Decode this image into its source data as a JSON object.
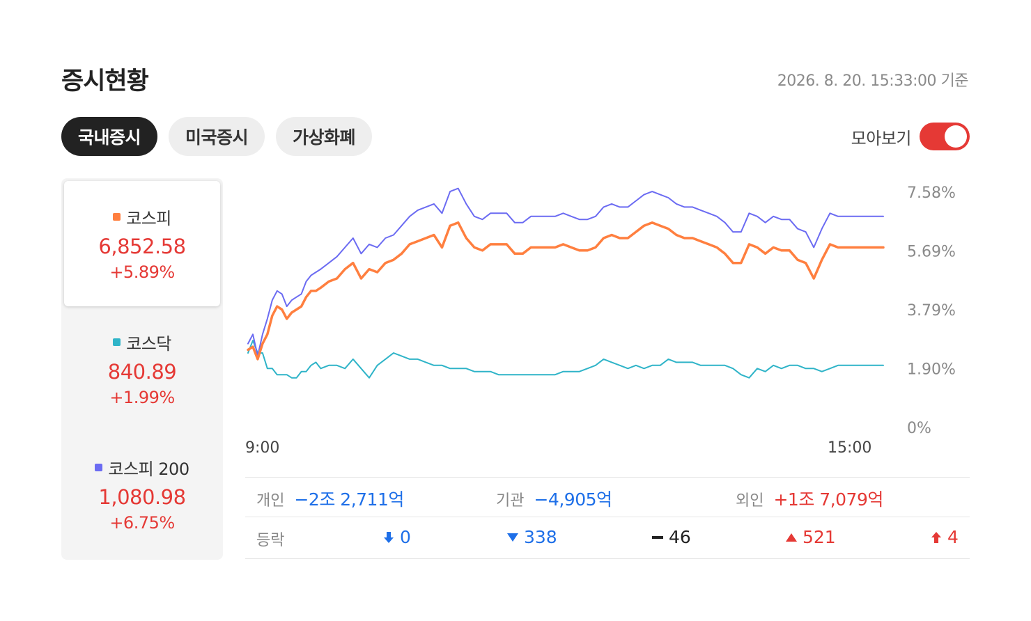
{
  "header": {
    "title": "증시현황",
    "timestamp": "2026. 8. 20. 15:33:00 기준"
  },
  "tabs": [
    {
      "label": "국내증시",
      "active": true
    },
    {
      "label": "미국증시",
      "active": false
    },
    {
      "label": "가상화폐",
      "active": false
    }
  ],
  "toggle": {
    "label": "모아보기",
    "on": true
  },
  "indices": [
    {
      "name": "코스피",
      "value": "6,852.58",
      "change": "+5.89%",
      "color": "#ff7f3f"
    },
    {
      "name": "코스닥",
      "value": "840.89",
      "change": "+1.99%",
      "color": "#2fb4c8"
    },
    {
      "name": "코스피 200",
      "value": "1,080.98",
      "change": "+6.75%",
      "color": "#6b6bf2"
    }
  ],
  "chart_data": {
    "type": "line",
    "x_labels": [
      "9:00",
      "15:00"
    ],
    "y_ticks": [
      "7.58%",
      "5.69%",
      "3.79%",
      "1.90%",
      "0%"
    ],
    "ylim": [
      0,
      7.58
    ],
    "x_range_minutes": [
      0,
      393
    ],
    "series": [
      {
        "name": "코스피",
        "color": "#ff7f3f",
        "x": [
          0,
          3,
          6,
          9,
          12,
          15,
          18,
          21,
          24,
          27,
          30,
          33,
          36,
          39,
          42,
          45,
          50,
          55,
          60,
          65,
          70,
          75,
          80,
          85,
          90,
          95,
          100,
          105,
          110,
          115,
          120,
          125,
          130,
          135,
          140,
          145,
          150,
          155,
          160,
          165,
          170,
          175,
          180,
          185,
          190,
          195,
          200,
          205,
          210,
          215,
          220,
          225,
          230,
          235,
          240,
          245,
          250,
          255,
          260,
          265,
          270,
          275,
          280,
          285,
          290,
          295,
          300,
          305,
          310,
          315,
          320,
          325,
          330,
          335,
          340,
          345,
          350,
          355,
          360,
          365,
          370,
          375,
          380,
          385,
          390,
          393
        ],
        "values": [
          2.5,
          2.6,
          2.2,
          2.7,
          3.0,
          3.6,
          3.9,
          3.8,
          3.5,
          3.7,
          3.8,
          3.9,
          4.2,
          4.4,
          4.4,
          4.5,
          4.7,
          4.8,
          5.1,
          5.3,
          4.8,
          5.1,
          5.0,
          5.3,
          5.4,
          5.6,
          5.9,
          6.0,
          6.1,
          6.2,
          5.8,
          6.5,
          6.6,
          6.1,
          5.8,
          5.7,
          5.9,
          5.9,
          5.9,
          5.6,
          5.6,
          5.8,
          5.8,
          5.8,
          5.8,
          5.9,
          5.8,
          5.7,
          5.7,
          5.8,
          6.1,
          6.2,
          6.1,
          6.1,
          6.3,
          6.5,
          6.6,
          6.5,
          6.4,
          6.2,
          6.1,
          6.1,
          6.0,
          5.9,
          5.8,
          5.6,
          5.3,
          5.3,
          5.9,
          5.8,
          5.6,
          5.8,
          5.7,
          5.7,
          5.4,
          5.3,
          4.8,
          5.4,
          5.9,
          5.8,
          5.8,
          5.8,
          5.8,
          5.8,
          5.8,
          5.8
        ],
        "note": "approximate"
      },
      {
        "name": "코스닥",
        "color": "#2fb4c8",
        "values": [
          2.4,
          2.8,
          2.4,
          2.4,
          1.9,
          1.9,
          1.7,
          1.7,
          1.7,
          1.6,
          1.6,
          1.8,
          1.8,
          2.0,
          2.1,
          1.9,
          2.0,
          2.0,
          1.9,
          2.2,
          1.9,
          1.6,
          2.0,
          2.2,
          2.4,
          2.3,
          2.2,
          2.2,
          2.1,
          2.0,
          2.0,
          1.9,
          1.9,
          1.9,
          1.8,
          1.8,
          1.8,
          1.7,
          1.7,
          1.7,
          1.7,
          1.7,
          1.7,
          1.7,
          1.7,
          1.8,
          1.8,
          1.8,
          1.9,
          2.0,
          2.2,
          2.1,
          2.0,
          1.9,
          2.0,
          1.9,
          2.0,
          2.0,
          2.2,
          2.1,
          2.1,
          2.1,
          2.0,
          2.0,
          2.0,
          2.0,
          1.9,
          1.7,
          1.6,
          1.9,
          1.8,
          2.0,
          1.9,
          2.0,
          2.0,
          1.9,
          1.9,
          1.8,
          1.9,
          2.0,
          2.0,
          2.0,
          2.0,
          2.0,
          2.0,
          2.0
        ]
      },
      {
        "name": "코스피 200",
        "color": "#6b6bf2",
        "values": [
          2.7,
          3.0,
          2.3,
          3.0,
          3.5,
          4.1,
          4.4,
          4.3,
          3.9,
          4.1,
          4.2,
          4.3,
          4.7,
          4.9,
          5.0,
          5.1,
          5.3,
          5.5,
          5.8,
          6.1,
          5.6,
          5.9,
          5.8,
          6.1,
          6.2,
          6.5,
          6.8,
          7.0,
          7.1,
          7.2,
          6.9,
          7.6,
          7.7,
          7.2,
          6.8,
          6.7,
          6.9,
          6.9,
          6.9,
          6.6,
          6.6,
          6.8,
          6.8,
          6.8,
          6.8,
          6.9,
          6.8,
          6.7,
          6.7,
          6.8,
          7.1,
          7.2,
          7.1,
          7.1,
          7.3,
          7.5,
          7.6,
          7.5,
          7.4,
          7.2,
          7.1,
          7.1,
          7.0,
          6.9,
          6.8,
          6.6,
          6.3,
          6.3,
          6.9,
          6.8,
          6.6,
          6.8,
          6.7,
          6.7,
          6.4,
          6.3,
          5.8,
          6.4,
          6.9,
          6.8,
          6.8,
          6.8,
          6.8,
          6.8,
          6.8,
          6.8
        ]
      }
    ]
  },
  "investors": [
    {
      "label": "개인",
      "value": "−2조 2,711억",
      "trend": "down"
    },
    {
      "label": "기관",
      "value": "−4,905억",
      "trend": "down"
    },
    {
      "label": "외인",
      "value": "+1조 7,079억",
      "trend": "up"
    }
  ],
  "updown": {
    "label": "등락",
    "items": [
      {
        "icon": "limit-down-arrow-icon",
        "value": "0",
        "color": "#1e6fe8"
      },
      {
        "icon": "down-triangle-icon",
        "value": "338",
        "color": "#1e6fe8"
      },
      {
        "icon": "flat-dash-icon",
        "value": "46",
        "color": "#222222"
      },
      {
        "icon": "up-triangle-icon",
        "value": "521",
        "color": "#e53935"
      },
      {
        "icon": "limit-up-arrow-icon",
        "value": "4",
        "color": "#e53935"
      }
    ]
  }
}
